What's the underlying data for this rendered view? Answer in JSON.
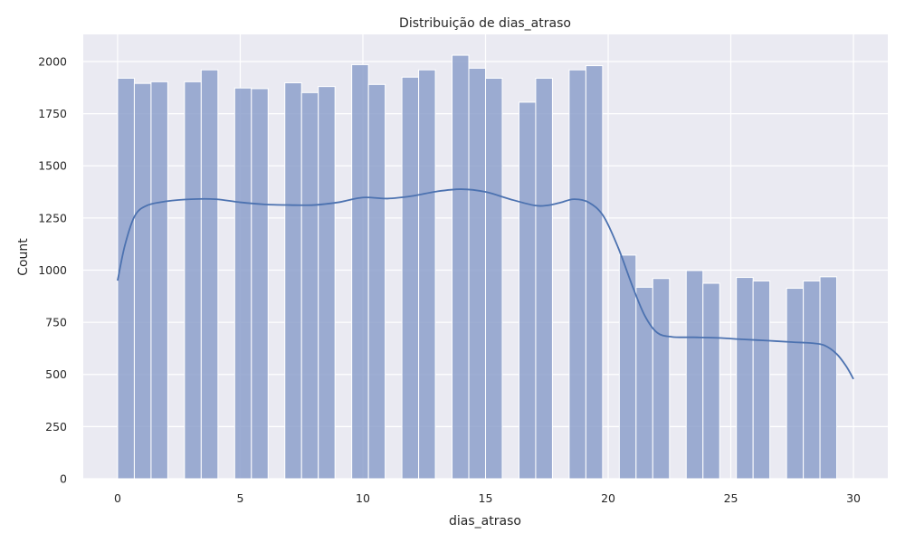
{
  "chart_data": {
    "type": "bar",
    "title": "Distribuição de dias_atraso",
    "xlabel": "dias_atraso",
    "ylabel": "Count",
    "xlim": [
      -1.4,
      31.4
    ],
    "ylim": [
      0,
      2130
    ],
    "xticks": [
      0,
      5,
      10,
      15,
      20,
      25,
      30
    ],
    "yticks": [
      0,
      250,
      500,
      750,
      1000,
      1250,
      1500,
      1750,
      2000
    ],
    "grid": true,
    "background_color": "#eaeaf2",
    "bar_color": "#8da0cb",
    "line_color": "#4c72b0",
    "bin_width": 0.6818,
    "bins": [
      {
        "x": 0,
        "count": 1920
      },
      {
        "x": 0.682,
        "count": 1895
      },
      {
        "x": 1.364,
        "count": 1903
      },
      {
        "x": 2.727,
        "count": 1903
      },
      {
        "x": 3.409,
        "count": 1960
      },
      {
        "x": 4.773,
        "count": 1873
      },
      {
        "x": 5.455,
        "count": 1870
      },
      {
        "x": 6.818,
        "count": 1898
      },
      {
        "x": 7.5,
        "count": 1851
      },
      {
        "x": 8.182,
        "count": 1880
      },
      {
        "x": 9.545,
        "count": 1985
      },
      {
        "x": 10.227,
        "count": 1890
      },
      {
        "x": 11.591,
        "count": 1925
      },
      {
        "x": 12.273,
        "count": 1960
      },
      {
        "x": 13.636,
        "count": 2030
      },
      {
        "x": 14.318,
        "count": 1968
      },
      {
        "x": 15.0,
        "count": 1920
      },
      {
        "x": 16.364,
        "count": 1805
      },
      {
        "x": 17.045,
        "count": 1920
      },
      {
        "x": 18.409,
        "count": 1960
      },
      {
        "x": 19.091,
        "count": 1980
      },
      {
        "x": 20.455,
        "count": 1072
      },
      {
        "x": 21.136,
        "count": 918
      },
      {
        "x": 21.818,
        "count": 960
      },
      {
        "x": 23.182,
        "count": 998
      },
      {
        "x": 23.864,
        "count": 937
      },
      {
        "x": 25.227,
        "count": 965
      },
      {
        "x": 25.909,
        "count": 948
      },
      {
        "x": 27.273,
        "count": 913
      },
      {
        "x": 27.955,
        "count": 948
      },
      {
        "x": 28.636,
        "count": 968
      }
    ],
    "kde": [
      {
        "x": 0,
        "y": 950
      },
      {
        "x": 0.3,
        "y": 1120
      },
      {
        "x": 0.7,
        "y": 1260
      },
      {
        "x": 1.2,
        "y": 1310
      },
      {
        "x": 2,
        "y": 1330
      },
      {
        "x": 3,
        "y": 1340
      },
      {
        "x": 4,
        "y": 1340
      },
      {
        "x": 5,
        "y": 1325
      },
      {
        "x": 6,
        "y": 1315
      },
      {
        "x": 7,
        "y": 1312
      },
      {
        "x": 8,
        "y": 1312
      },
      {
        "x": 9,
        "y": 1325
      },
      {
        "x": 10,
        "y": 1348
      },
      {
        "x": 11,
        "y": 1343
      },
      {
        "x": 12,
        "y": 1355
      },
      {
        "x": 13,
        "y": 1377
      },
      {
        "x": 14,
        "y": 1388
      },
      {
        "x": 15,
        "y": 1375
      },
      {
        "x": 16,
        "y": 1340
      },
      {
        "x": 17,
        "y": 1310
      },
      {
        "x": 17.5,
        "y": 1310
      },
      {
        "x": 18,
        "y": 1322
      },
      {
        "x": 18.6,
        "y": 1340
      },
      {
        "x": 19.2,
        "y": 1325
      },
      {
        "x": 19.8,
        "y": 1260
      },
      {
        "x": 20.4,
        "y": 1110
      },
      {
        "x": 21,
        "y": 920
      },
      {
        "x": 21.5,
        "y": 780
      },
      {
        "x": 22,
        "y": 700
      },
      {
        "x": 22.6,
        "y": 680
      },
      {
        "x": 23.5,
        "y": 678
      },
      {
        "x": 24.5,
        "y": 675
      },
      {
        "x": 25.5,
        "y": 668
      },
      {
        "x": 26.5,
        "y": 662
      },
      {
        "x": 27.5,
        "y": 655
      },
      {
        "x": 28.3,
        "y": 650
      },
      {
        "x": 28.8,
        "y": 640
      },
      {
        "x": 29.3,
        "y": 600
      },
      {
        "x": 29.7,
        "y": 540
      },
      {
        "x": 30,
        "y": 478
      }
    ]
  }
}
